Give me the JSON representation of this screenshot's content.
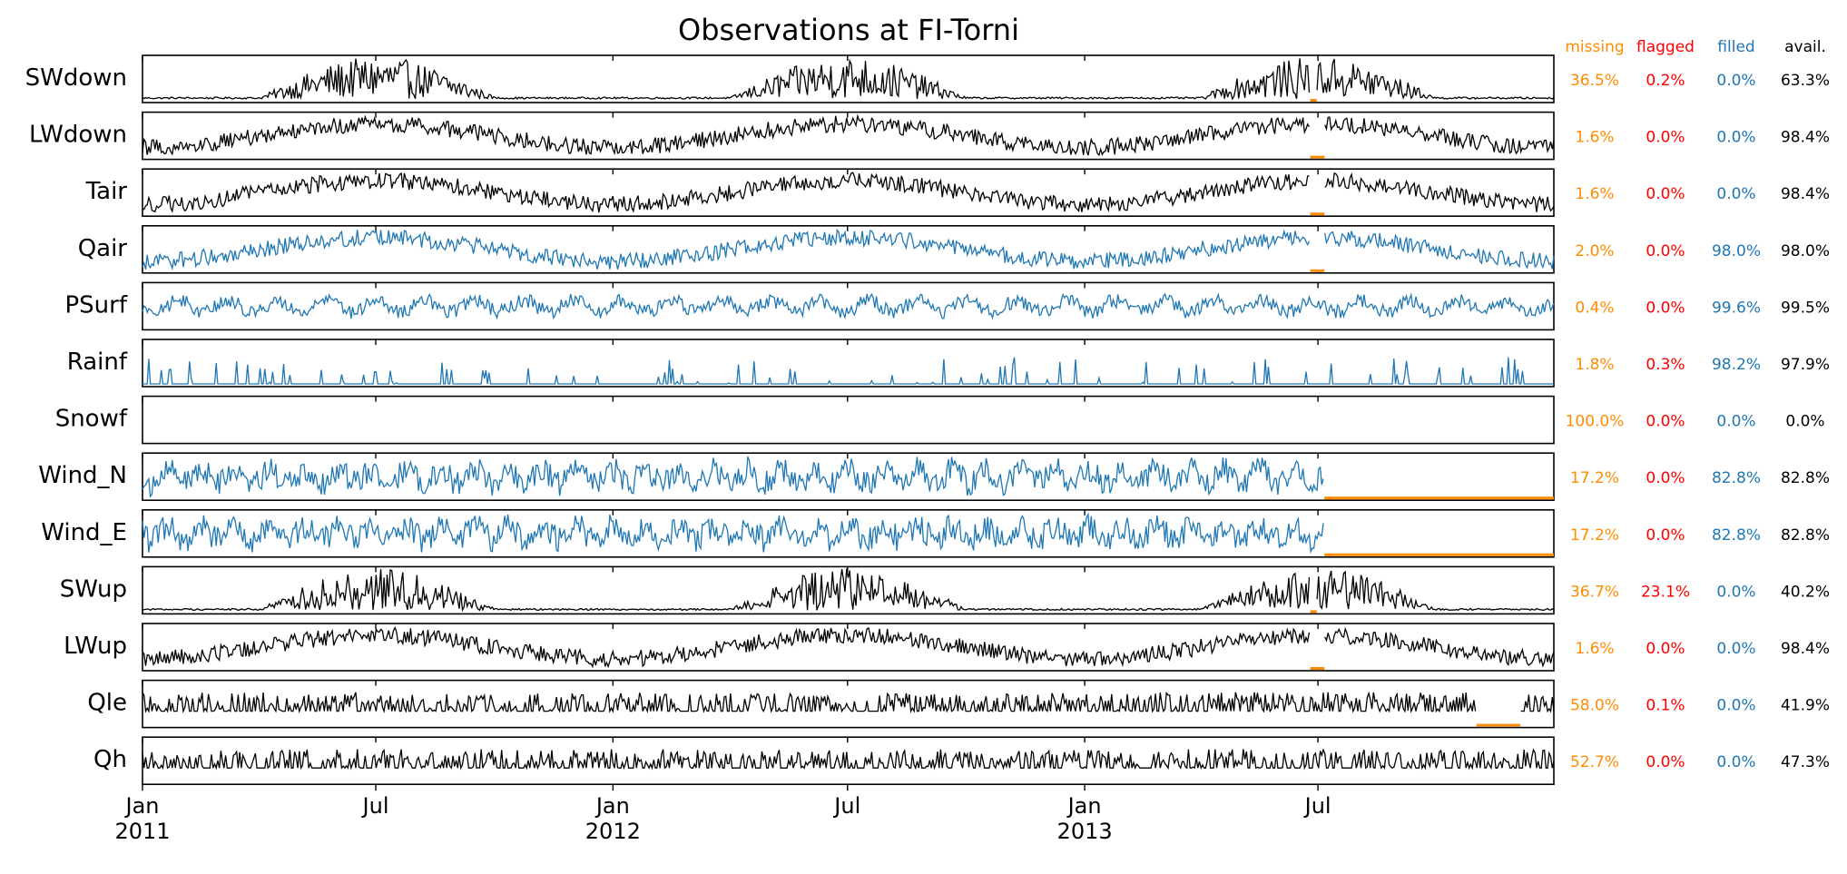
{
  "chart_data": {
    "type": "line",
    "title": "Observations at FI-Torni",
    "x_range": [
      "2011-01-01",
      "2013-12-31"
    ],
    "x_ticks": [
      {
        "date": "2011-01-01",
        "label": "Jan",
        "year": "2011"
      },
      {
        "date": "2011-07-01",
        "label": "Jul",
        "year": ""
      },
      {
        "date": "2012-01-01",
        "label": "Jan",
        "year": "2012"
      },
      {
        "date": "2012-07-01",
        "label": "Jul",
        "year": ""
      },
      {
        "date": "2013-01-01",
        "label": "Jan",
        "year": "2013"
      },
      {
        "date": "2013-07-01",
        "label": "Jul",
        "year": ""
      }
    ],
    "column_headers": {
      "missing": "missing",
      "flagged": "flagged",
      "filled": "filled",
      "avail": "avail."
    },
    "colors": {
      "missing": "#ff8c00",
      "flagged": "#ff0000",
      "filled": "#1f77b4",
      "observed": "#000000",
      "avail": "#000000"
    },
    "series": [
      {
        "name": "SWdown",
        "missing": "36.5%",
        "flagged": "0.2%",
        "filled": "0.0%",
        "avail": "63.3%",
        "line_color": "#000000",
        "kind": "seasonal_spiky",
        "gaps": [
          [
            "2013-06-25",
            "2013-06-30"
          ]
        ]
      },
      {
        "name": "LWdown",
        "missing": "1.6%",
        "flagged": "0.0%",
        "filled": "0.0%",
        "avail": "98.4%",
        "line_color": "#000000",
        "kind": "seasonal",
        "gaps": [
          [
            "2013-06-25",
            "2013-07-06"
          ]
        ]
      },
      {
        "name": "Tair",
        "missing": "1.6%",
        "flagged": "0.0%",
        "filled": "0.0%",
        "avail": "98.4%",
        "line_color": "#000000",
        "kind": "seasonal",
        "gaps": [
          [
            "2013-06-25",
            "2013-07-06"
          ]
        ]
      },
      {
        "name": "Qair",
        "missing": "2.0%",
        "flagged": "0.0%",
        "filled": "98.0%",
        "avail": "98.0%",
        "line_color": "#1f77b4",
        "kind": "seasonal",
        "gaps": [
          [
            "2013-06-25",
            "2013-07-06"
          ]
        ]
      },
      {
        "name": "PSurf",
        "missing": "0.4%",
        "flagged": "0.0%",
        "filled": "99.6%",
        "avail": "99.5%",
        "line_color": "#1f77b4",
        "kind": "noise",
        "gaps": []
      },
      {
        "name": "Rainf",
        "missing": "1.8%",
        "flagged": "0.3%",
        "filled": "98.2%",
        "avail": "97.9%",
        "line_color": "#1f77b4",
        "kind": "rain",
        "gaps": []
      },
      {
        "name": "Snowf",
        "missing": "100.0%",
        "flagged": "0.0%",
        "filled": "0.0%",
        "avail": "0.0%",
        "line_color": "#1f77b4",
        "kind": "empty",
        "gaps": []
      },
      {
        "name": "Wind_N",
        "missing": "17.2%",
        "flagged": "0.0%",
        "filled": "82.8%",
        "avail": "82.8%",
        "line_color": "#1f77b4",
        "kind": "noise_strong",
        "gaps": [
          [
            "2013-07-06",
            "2013-12-31"
          ]
        ]
      },
      {
        "name": "Wind_E",
        "missing": "17.2%",
        "flagged": "0.0%",
        "filled": "82.8%",
        "avail": "82.8%",
        "line_color": "#1f77b4",
        "kind": "noise_strong",
        "gaps": [
          [
            "2013-07-06",
            "2013-12-31"
          ]
        ]
      },
      {
        "name": "SWup",
        "missing": "36.7%",
        "flagged": "23.1%",
        "filled": "0.0%",
        "avail": "40.2%",
        "line_color": "#000000",
        "kind": "seasonal_spiky",
        "gaps": [
          [
            "2013-06-25",
            "2013-06-30"
          ]
        ]
      },
      {
        "name": "LWup",
        "missing": "1.6%",
        "flagged": "0.0%",
        "filled": "0.0%",
        "avail": "98.4%",
        "line_color": "#000000",
        "kind": "seasonal",
        "gaps": [
          [
            "2013-06-25",
            "2013-07-06"
          ]
        ]
      },
      {
        "name": "Qle",
        "missing": "58.0%",
        "flagged": "0.1%",
        "filled": "0.0%",
        "avail": "41.9%",
        "line_color": "#000000",
        "kind": "flux",
        "gaps": [
          [
            "2013-11-01",
            "2013-12-05"
          ]
        ]
      },
      {
        "name": "Qh",
        "missing": "52.7%",
        "flagged": "0.0%",
        "filled": "0.0%",
        "avail": "47.3%",
        "line_color": "#000000",
        "kind": "flux",
        "gaps": []
      }
    ]
  }
}
